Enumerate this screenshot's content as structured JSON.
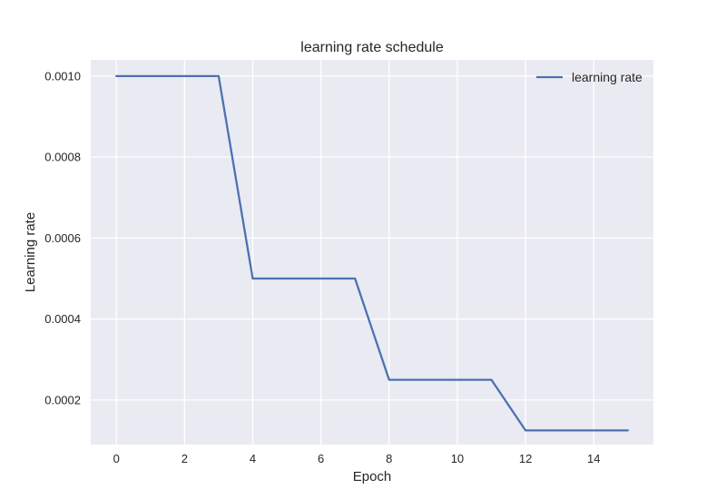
{
  "chart_data": {
    "type": "line",
    "title": "learning rate schedule",
    "xlabel": "Epoch",
    "ylabel": "Learning rate",
    "xlim": [
      -0.75,
      15.75
    ],
    "ylim": [
      9e-05,
      0.00104
    ],
    "x_ticks": [
      0,
      2,
      4,
      6,
      8,
      10,
      12,
      14
    ],
    "x_tick_labels": [
      "0",
      "2",
      "4",
      "6",
      "8",
      "10",
      "12",
      "14"
    ],
    "y_ticks": [
      0.0002,
      0.0004,
      0.0006,
      0.0008,
      0.001
    ],
    "y_tick_labels": [
      "0.0002",
      "0.0004",
      "0.0006",
      "0.0008",
      "0.0010"
    ],
    "grid": true,
    "legend_position": "top-right",
    "series": [
      {
        "name": "learning rate",
        "color": "#4c72b0",
        "x": [
          0,
          1,
          2,
          3,
          4,
          5,
          6,
          7,
          8,
          9,
          10,
          11,
          12,
          13,
          14,
          15
        ],
        "values": [
          0.001,
          0.001,
          0.001,
          0.001,
          0.0005,
          0.0005,
          0.0005,
          0.0005,
          0.00025,
          0.00025,
          0.00025,
          0.00025,
          0.000125,
          0.000125,
          0.000125,
          0.000125
        ]
      }
    ]
  },
  "colors": {
    "plot_background": "#eaeaf2",
    "grid": "#ffffff",
    "text": "#262626"
  }
}
